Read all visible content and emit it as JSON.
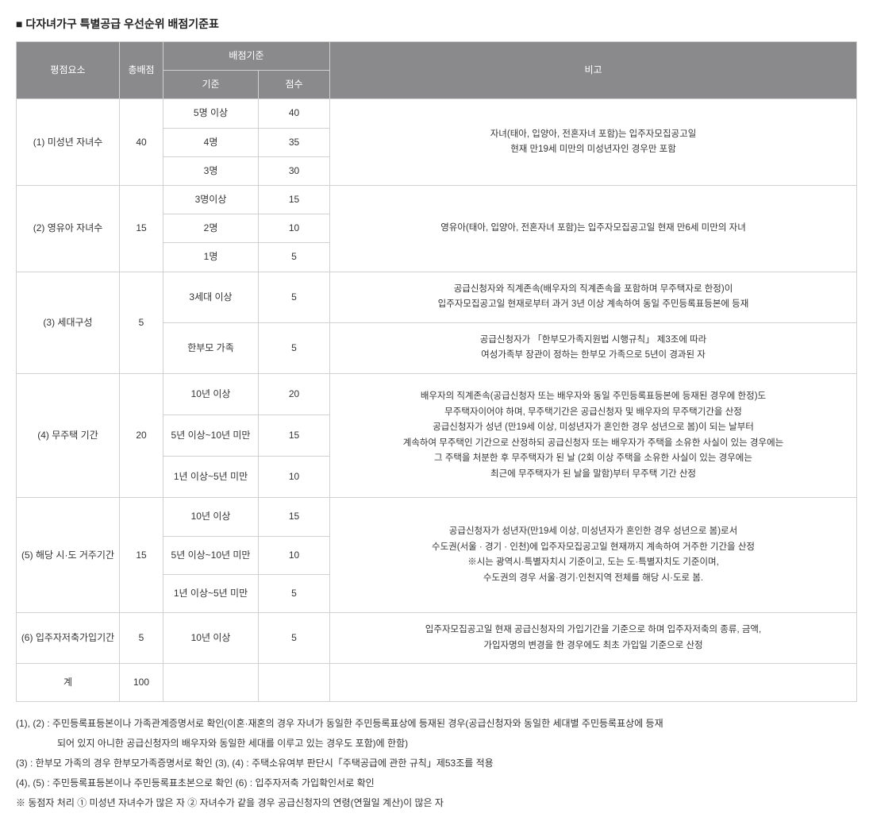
{
  "title": "다자녀가구 특별공급 우선순위 배점기준표",
  "headers": {
    "factor": "평점요소",
    "totalPoints": "총배점",
    "criteria": "배점기준",
    "criteriaSub1": "기준",
    "criteriaSub2": "점수",
    "note": "비고"
  },
  "rows": [
    {
      "factor": "(1) 미성년 자녀수",
      "total": "40",
      "criteria": [
        {
          "label": "5명 이상",
          "score": "40"
        },
        {
          "label": "4명",
          "score": "35"
        },
        {
          "label": "3명",
          "score": "30"
        }
      ],
      "note": "자녀(태아, 입양아, 전혼자녀 포함)는 입주자모집공고일\n현재 만19세 미만의 미성년자인 경우만 포함"
    },
    {
      "factor": "(2) 영유아 자녀수",
      "total": "15",
      "criteria": [
        {
          "label": "3명이상",
          "score": "15"
        },
        {
          "label": "2명",
          "score": "10"
        },
        {
          "label": "1명",
          "score": "5"
        }
      ],
      "note": "영유아(태아, 입양아, 전혼자녀 포함)는 입주자모집공고일 현재 만6세 미만의 자녀"
    },
    {
      "factor": "(3) 세대구성",
      "total": "5",
      "criteria": [
        {
          "label": "3세대 이상",
          "score": "5",
          "note": "공급신청자와 직계존속(배우자의 직계존속을 포함하며 무주택자로 한정)이\n입주자모집공고일 현재로부터 과거 3년 이상 계속하여 동일 주민등록표등본에 등재"
        },
        {
          "label": "한부모 가족",
          "score": "5",
          "note": "공급신청자가 「한부모가족지원법 시행규칙」 제3조에 따라\n여성가족부 장관이 정하는 한부모 가족으로 5년이 경과된 자"
        }
      ]
    },
    {
      "factor": "(4) 무주택 기간",
      "total": "20",
      "criteria": [
        {
          "label": "10년 이상",
          "score": "20"
        },
        {
          "label": "5년 이상~10년 미만",
          "score": "15"
        },
        {
          "label": "1년 이상~5년 미만",
          "score": "10"
        }
      ],
      "note": "배우자의 직계존속(공급신청자 또는 배우자와 동일 주민등록표등본에 등재된 경우에 한정)도\n무주택자이어야 하며, 무주택기간은 공급신청자 및 배우자의 무주택기간을 산정\n공급신청자가 성년 (만19세 이상, 미성년자가 혼인한 경우 성년으로 봄)이 되는 날부터\n계속하여 무주택인 기간으로 산정하되 공급신청자 또는 배우자가 주택을 소유한 사실이 있는 경우에는\n그 주택을 처분한 후 무주택자가 된 날 (2회 이상 주택을 소유한 사실이 있는 경우에는\n최근에 무주택자가 된 날을 말함)부터 무주택 기간 산정"
    },
    {
      "factor": "(5) 해당 시·도 거주기간",
      "total": "15",
      "criteria": [
        {
          "label": "10년 이상",
          "score": "15"
        },
        {
          "label": "5년 이상~10년 미만",
          "score": "10"
        },
        {
          "label": "1년 이상~5년 미만",
          "score": "5"
        }
      ],
      "note": "공급신청자가 성년자(만19세 이상, 미성년자가 혼인한 경우 성년으로 봄)로서\n수도권(서울 · 경기 · 인천)에 입주자모집공고일 현재까지 계속하여 거주한 기간을 산정\n※시는 광역시·특별자치시 기준이고, 도는 도·특별자치도 기준이며,\n수도권의 경우 서울·경기·인천지역 전체를 해당 시·도로 봄."
    },
    {
      "factor": "(6) 입주자저축가입기간",
      "total": "5",
      "criteria": [
        {
          "label": "10년 이상",
          "score": "5"
        }
      ],
      "note": "입주자모집공고일 현재 공급신청자의 가입기간을 기준으로 하며 입주자저축의 종류, 금액,\n가입자명의 변경을 한 경우에도 최초 가입일 기준으로 산정"
    }
  ],
  "totalRow": {
    "label": "계",
    "value": "100"
  },
  "footnotes": [
    "(1), (2) : 주민등록표등본이나 가족관계증명서로 확인(이혼·재혼의 경우 자녀가 동일한 주민등록표상에 등재된 경우(공급신청자와 동일한 세대별 주민등록표상에 등재",
    "되어 있지 아니한 공급신청자의 배우자와 동일한 세대를 이루고 있는 경우도 포함)에 한함)",
    "(3) : 한부모 가족의 경우 한부모가족증명서로 확인 (3), (4) : 주택소유여부 판단시「주택공급에 관한 규칙」제53조를 적용",
    "(4), (5) : 주민등록표등본이나 주민등록표초본으로 확인 (6) : 입주자저축 가입확인서로 확인",
    "※ 동점자 처리 ① 미성년 자녀수가 많은 자 ② 자녀수가 같을 경우 공급신청자의 연령(연월일 계산)이 많은 자"
  ]
}
